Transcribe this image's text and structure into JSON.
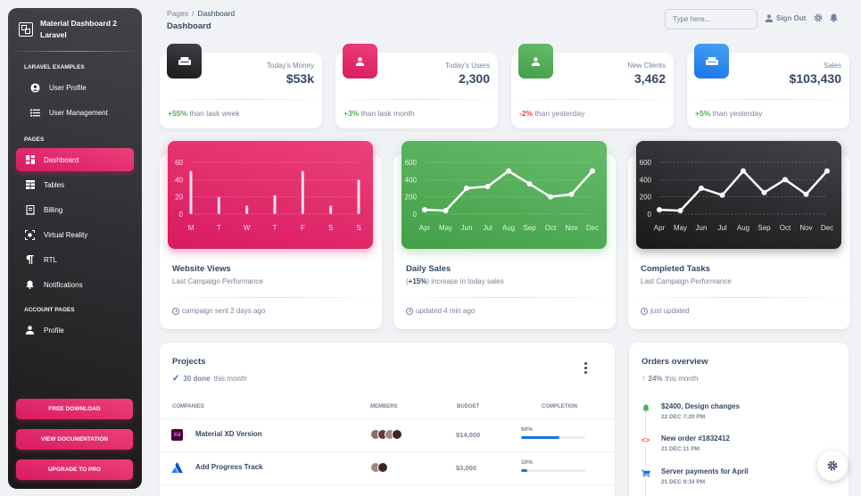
{
  "sidebar": {
    "brand": "Material Dashboard 2 Laravel",
    "sections": [
      {
        "title": "LARAVEL EXAMPLES",
        "items": [
          {
            "label": "User Profile",
            "icon": "user-circle-icon"
          },
          {
            "label": "User Management",
            "icon": "list-icon"
          }
        ]
      },
      {
        "title": "PAGES",
        "items": [
          {
            "label": "Dashboard",
            "icon": "dashboard-icon",
            "active": true
          },
          {
            "label": "Tables",
            "icon": "table-icon"
          },
          {
            "label": "Billing",
            "icon": "receipt-icon"
          },
          {
            "label": "Virtual Reality",
            "icon": "vr-icon"
          },
          {
            "label": "RTL",
            "icon": "rtl-icon"
          },
          {
            "label": "Notifications",
            "icon": "bell-icon"
          }
        ]
      },
      {
        "title": "ACCOUNT PAGES",
        "items": [
          {
            "label": "Profile",
            "icon": "person-icon"
          }
        ]
      }
    ],
    "buttons": {
      "download": "FREE DOWNLOAD",
      "docs": "VIEW DOCUMENTATION",
      "upgrade": "UPGRADE TO PRO"
    }
  },
  "navbar": {
    "breadcrumb_root": "Pages",
    "breadcrumb_current": "Dashboard",
    "title": "Dashboard",
    "search_placeholder": "Type here...",
    "signout": "Sign Out"
  },
  "stats": [
    {
      "label": "Today's Money",
      "value": "$53k",
      "change": "+55%",
      "change_text": "than lask week",
      "positive": true,
      "color": "#191919",
      "icon": "weekend-icon"
    },
    {
      "label": "Today's Users",
      "value": "2,300",
      "change": "+3%",
      "change_text": "than lask month",
      "positive": true,
      "color": "#e91e63",
      "icon": "person-icon"
    },
    {
      "label": "New Clients",
      "value": "3,462",
      "change": "-2%",
      "change_text": "than yesterday",
      "positive": false,
      "color": "#4caf50",
      "icon": "person-icon"
    },
    {
      "label": "Sales",
      "value": "$103,430",
      "change": "+5%",
      "change_text": "than yesterday",
      "positive": true,
      "color": "#1a73e8",
      "icon": "weekend-icon"
    }
  ],
  "charts": {
    "views": {
      "title": "Website Views",
      "subtitle": "Last Campaign Performance",
      "footer": "campaign sent 2 days ago",
      "color": "#e91e63"
    },
    "sales": {
      "title": "Daily Sales",
      "subtitle_bold": "+15%",
      "subtitle_rest": "increase in today sales",
      "footer": "updated 4 min ago",
      "color": "#4caf50"
    },
    "tasks": {
      "title": "Completed Tasks",
      "subtitle": "Last Campaign Performance",
      "footer": "just updated",
      "color": "#191919"
    }
  },
  "chart_data": [
    {
      "type": "bar",
      "categories": [
        "M",
        "T",
        "W",
        "T",
        "F",
        "S",
        "S"
      ],
      "values": [
        50,
        20,
        10,
        22,
        50,
        10,
        40
      ],
      "ylim": [
        0,
        60
      ],
      "yticks": [
        0,
        20,
        40,
        60
      ]
    },
    {
      "type": "line",
      "categories": [
        "Apr",
        "May",
        "Jun",
        "Jul",
        "Aug",
        "Sep",
        "Oct",
        "Nov",
        "Dec"
      ],
      "values": [
        50,
        40,
        300,
        320,
        500,
        350,
        200,
        230,
        500
      ],
      "ylim": [
        0,
        600
      ],
      "yticks": [
        0,
        200,
        400,
        600
      ]
    },
    {
      "type": "line",
      "categories": [
        "Apr",
        "May",
        "Jun",
        "Jul",
        "Aug",
        "Sep",
        "Oct",
        "Nov",
        "Dec"
      ],
      "values": [
        50,
        40,
        300,
        220,
        500,
        250,
        400,
        230,
        500
      ],
      "ylim": [
        0,
        600
      ],
      "yticks": [
        0,
        200,
        400,
        600
      ]
    }
  ],
  "projects": {
    "title": "Projects",
    "done_bold": "30 done",
    "done_rest": "this month",
    "headers": {
      "companies": "COMPANIES",
      "members": "MEMBERS",
      "budget": "BUDGET",
      "completion": "COMPLETION"
    },
    "rows": [
      {
        "name": "Material XD Version",
        "logo": "Xd",
        "logo_icon": "xd-logo-icon",
        "budget": "$14,000",
        "completion": "60%",
        "progress": 60,
        "member_count": 4
      },
      {
        "name": "Add Progress Track",
        "logo": "",
        "logo_icon": "atlassian-logo-icon",
        "budget": "$3,000",
        "completion": "10%",
        "progress": 10,
        "member_count": 2
      }
    ]
  },
  "orders": {
    "title": "Orders overview",
    "growth_bold": "24%",
    "growth_rest": "this month",
    "items": [
      {
        "title": "$2400, Design changes",
        "date": "22 DEC 7:20 PM",
        "icon": "bell-icon",
        "color": "#4caf50"
      },
      {
        "title": "New order #1832412",
        "date": "21 DEC 11 PM",
        "icon": "code-icon",
        "color": "#f44335"
      },
      {
        "title": "Server payments for April",
        "date": "21 DEC 9:34 PM",
        "icon": "cart-icon",
        "color": "#1a73e8"
      }
    ]
  }
}
